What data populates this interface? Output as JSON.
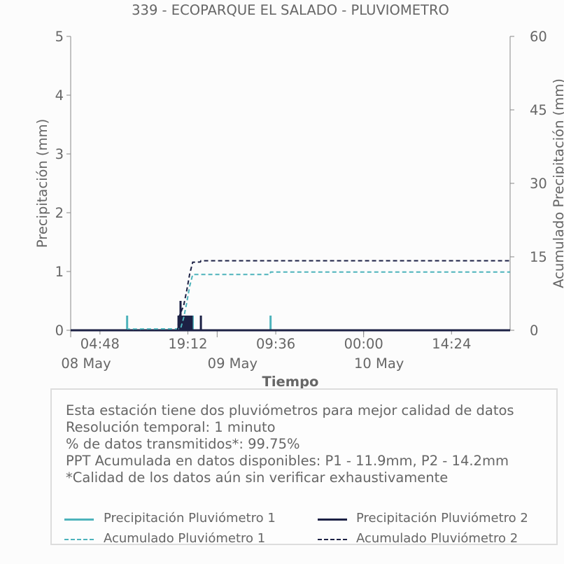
{
  "chart_data": {
    "type": "line",
    "title": "339 - ECOPARQUE EL SALADO - PLUVIOMETRO",
    "xlabel": "Tiempo",
    "ylabel_left": "Precipitación (mm)",
    "ylabel_right": "Acumulado Precipitación (mm)",
    "ylim_left": [
      0,
      5
    ],
    "ylim_right": [
      0,
      60
    ],
    "yticks_left": [
      "0",
      "1",
      "2",
      "3",
      "4",
      "5"
    ],
    "yticks_right": [
      "0",
      "15",
      "30",
      "45",
      "60"
    ],
    "xlim": [
      "2024-05-08 00:00",
      "2024-05-11 00:00"
    ],
    "xticks": [
      {
        "t": "2024-05-08 04:48",
        "label": "04:48"
      },
      {
        "t": "2024-05-08 19:12",
        "label": "19:12"
      },
      {
        "t": "2024-05-09 09:36",
        "label": "09:36"
      },
      {
        "t": "2024-05-10 00:00",
        "label": "00:00"
      },
      {
        "t": "2024-05-10 14:24",
        "label": "14:24"
      }
    ],
    "date_labels": [
      {
        "t": "2024-05-08 00:00",
        "label": "08 May"
      },
      {
        "t": "2024-05-09 00:00",
        "label": "09 May"
      },
      {
        "t": "2024-05-10 00:00",
        "label": "10 May"
      }
    ],
    "grid": false,
    "series": [
      {
        "name": "Precipitación Pluviómetro 1",
        "axis": "left",
        "style": "solid",
        "color": "#4db3bb",
        "points": [
          [
            "2024-05-08 09:15",
            0.25
          ],
          [
            "2024-05-08 18:30",
            0.25
          ],
          [
            "2024-05-08 19:00",
            0.25
          ],
          [
            "2024-05-08 19:30",
            0.25
          ],
          [
            "2024-05-08 20:00",
            0.25
          ],
          [
            "2024-05-09 08:45",
            0.25
          ]
        ]
      },
      {
        "name": "Precipitación Pluviómetro 2",
        "axis": "left",
        "style": "solid",
        "color": "#1c2145",
        "points": [
          [
            "2024-05-08 17:40",
            0.25
          ],
          [
            "2024-05-08 18:00",
            0.5
          ],
          [
            "2024-05-08 18:20",
            0.25
          ],
          [
            "2024-05-08 18:40",
            0.25
          ],
          [
            "2024-05-08 19:00",
            0.25
          ],
          [
            "2024-05-08 19:30",
            0.25
          ],
          [
            "2024-05-08 19:50",
            0.25
          ],
          [
            "2024-05-08 21:20",
            0.25
          ]
        ]
      },
      {
        "name": "Acumulado Pluviómetro 1",
        "axis": "right",
        "style": "dashed",
        "color": "#4db3bb",
        "points": [
          [
            "2024-05-08 00:00",
            0
          ],
          [
            "2024-05-08 09:15",
            0
          ],
          [
            "2024-05-08 09:20",
            0.25
          ],
          [
            "2024-05-08 18:00",
            0.3
          ],
          [
            "2024-05-08 18:30",
            2.5
          ],
          [
            "2024-05-08 19:00",
            5.5
          ],
          [
            "2024-05-08 19:30",
            9.0
          ],
          [
            "2024-05-08 20:00",
            11.4
          ],
          [
            "2024-05-09 08:40",
            11.4
          ],
          [
            "2024-05-09 08:45",
            11.9
          ],
          [
            "2024-05-11 00:00",
            11.9
          ]
        ]
      },
      {
        "name": "Acumulado Pluviómetro 2",
        "axis": "right",
        "style": "dashed",
        "color": "#1c2145",
        "points": [
          [
            "2024-05-08 00:00",
            0
          ],
          [
            "2024-05-08 17:30",
            0
          ],
          [
            "2024-05-08 17:50",
            3.0
          ],
          [
            "2024-05-08 18:30",
            5.0
          ],
          [
            "2024-05-08 19:00",
            8.0
          ],
          [
            "2024-05-08 19:30",
            11.5
          ],
          [
            "2024-05-08 20:00",
            13.9
          ],
          [
            "2024-05-08 21:15",
            13.95
          ],
          [
            "2024-05-08 21:20",
            14.2
          ],
          [
            "2024-05-11 00:00",
            14.2
          ]
        ]
      }
    ]
  },
  "info": {
    "lines": [
      "Esta estación tiene dos pluviómetros para mejor calidad de datos",
      "Resolución temporal: 1 minuto",
      "% de datos transmitidos*: 99.75%",
      "PPT Acumulada en datos disponibles: P1 - 11.9mm, P2 - 14.2mm",
      "*Calidad de los datos aún sin verificar exhaustivamente"
    ]
  }
}
